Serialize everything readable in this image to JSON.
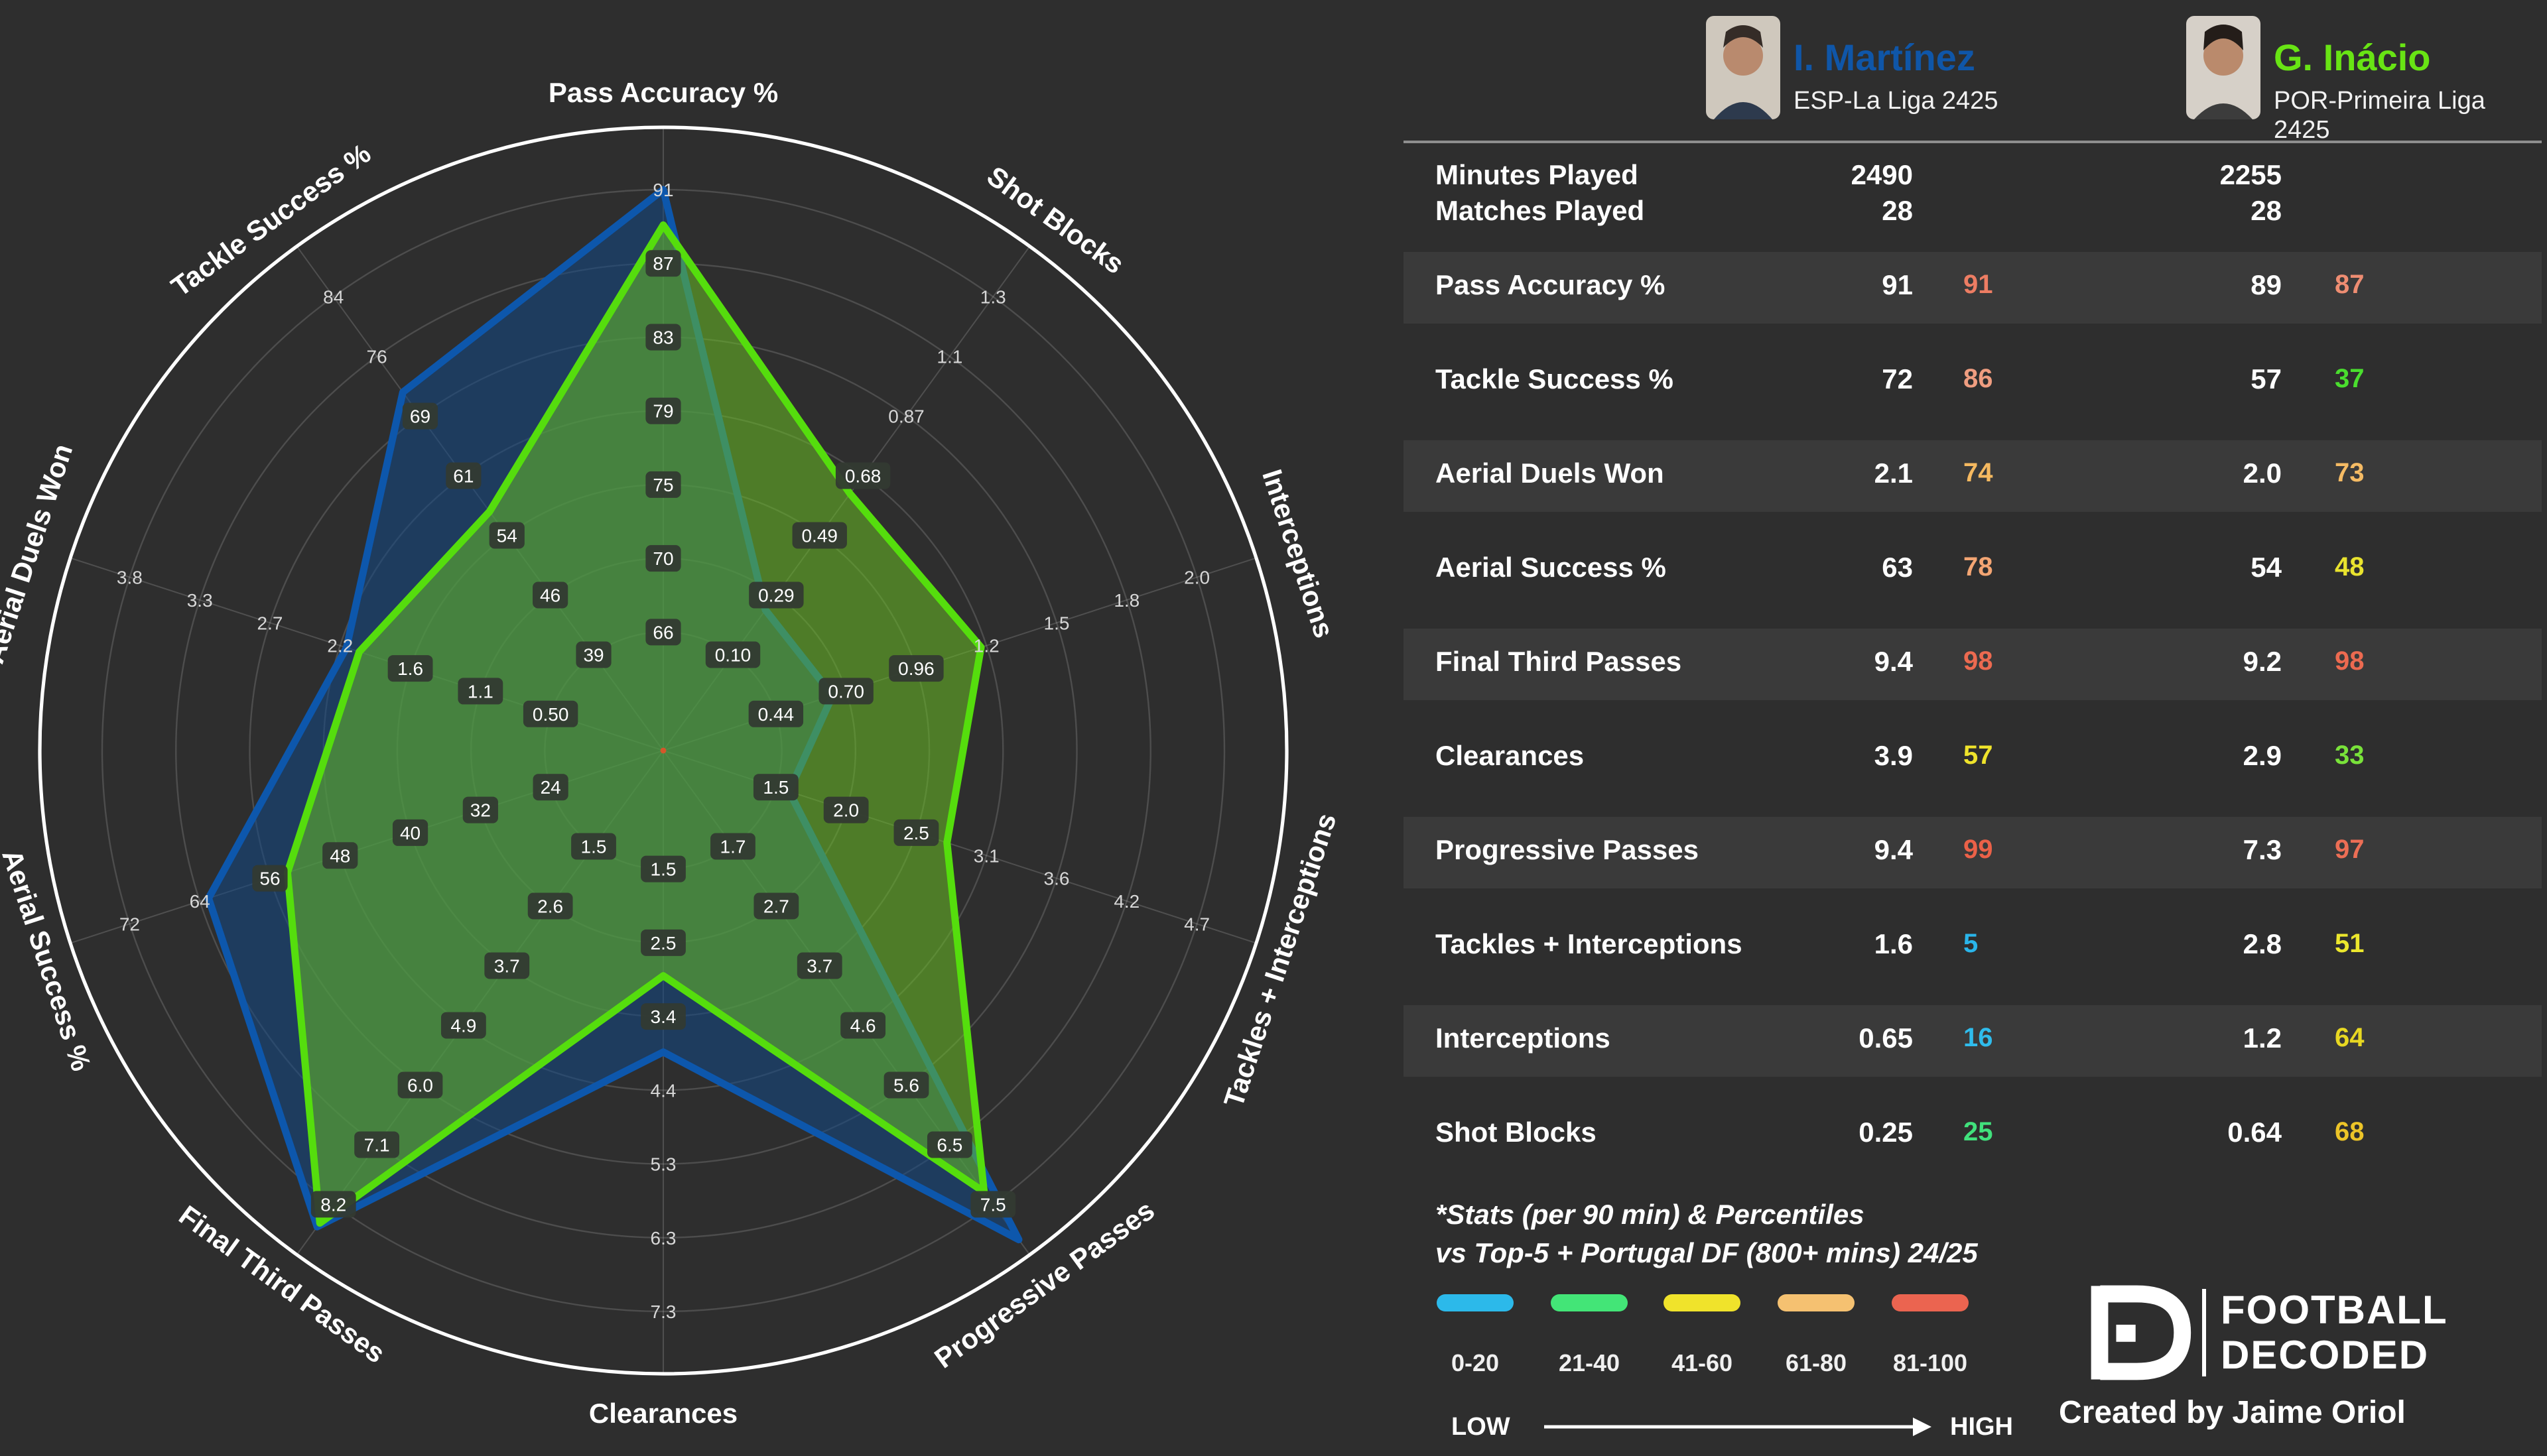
{
  "chart_data": {
    "type": "radar",
    "note": "10-axis radar; each axis has its own percentile-derived tick scale; series plotted by per-90 value",
    "axes": [
      {
        "label": "Pass Accuracy %",
        "ticks": [
          "66",
          "70",
          "75",
          "79",
          "83",
          "87",
          "91"
        ],
        "tick_values": [
          66,
          70,
          75,
          79,
          83,
          87,
          91
        ],
        "boxed": [
          1,
          1,
          1,
          1,
          1,
          1,
          0
        ]
      },
      {
        "label": "Shot Blocks",
        "ticks": [
          "0.10",
          "0.29",
          "0.49",
          "0.68",
          "0.87",
          "1.1",
          "1.3"
        ],
        "tick_values": [
          0.1,
          0.29,
          0.49,
          0.68,
          0.87,
          1.1,
          1.3
        ],
        "boxed": [
          1,
          1,
          1,
          1,
          0,
          0,
          0
        ]
      },
      {
        "label": "Interceptions",
        "ticks": [
          "0.44",
          "0.70",
          "0.96",
          "1.2",
          "1.5",
          "1.8",
          "2.0"
        ],
        "tick_values": [
          0.44,
          0.7,
          0.96,
          1.2,
          1.5,
          1.8,
          2.0
        ],
        "boxed": [
          1,
          1,
          1,
          0,
          0,
          0,
          0
        ]
      },
      {
        "label": "Tackles + Interceptions",
        "ticks": [
          "1.5",
          "2.0",
          "2.5",
          "3.1",
          "3.6",
          "4.2",
          "4.7"
        ],
        "tick_values": [
          1.5,
          2.0,
          2.5,
          3.1,
          3.6,
          4.2,
          4.7
        ],
        "boxed": [
          1,
          1,
          1,
          0,
          0,
          0,
          0
        ]
      },
      {
        "label": "Progressive Passes",
        "ticks": [
          "1.7",
          "2.7",
          "3.7",
          "4.6",
          "5.6",
          "6.5",
          "7.5"
        ],
        "tick_values": [
          1.7,
          2.7,
          3.7,
          4.6,
          5.6,
          6.5,
          7.5
        ],
        "boxed": [
          1,
          1,
          1,
          1,
          1,
          1,
          1
        ]
      },
      {
        "label": "Clearances",
        "ticks": [
          "1.5",
          "2.5",
          "3.4",
          "4.4",
          "5.3",
          "6.3",
          "7.3"
        ],
        "tick_values": [
          1.5,
          2.5,
          3.4,
          4.4,
          5.3,
          6.3,
          7.3
        ],
        "boxed": [
          1,
          1,
          1,
          0,
          0,
          0,
          0
        ]
      },
      {
        "label": "Final Third Passes",
        "ticks": [
          "1.5",
          "2.6",
          "3.7",
          "4.9",
          "6.0",
          "7.1",
          "8.2"
        ],
        "tick_values": [
          1.5,
          2.6,
          3.7,
          4.9,
          6.0,
          7.1,
          8.2
        ],
        "boxed": [
          1,
          1,
          1,
          1,
          1,
          1,
          1
        ]
      },
      {
        "label": "Aerial Success %",
        "ticks": [
          "24",
          "32",
          "40",
          "48",
          "56",
          "64",
          "72"
        ],
        "tick_values": [
          24,
          32,
          40,
          48,
          56,
          64,
          72
        ],
        "boxed": [
          1,
          1,
          1,
          1,
          1,
          0,
          0
        ]
      },
      {
        "label": "Aerial Duels Won",
        "ticks": [
          "0.50",
          "1.1",
          "1.6",
          "2.2",
          "2.7",
          "3.3",
          "3.8"
        ],
        "tick_values": [
          0.5,
          1.1,
          1.6,
          2.2,
          2.7,
          3.3,
          3.8
        ],
        "boxed": [
          1,
          1,
          1,
          0,
          0,
          0,
          0
        ]
      },
      {
        "label": "Tackle Success %",
        "ticks": [
          "39",
          "46",
          "54",
          "61",
          "69",
          "76",
          "84"
        ],
        "tick_values": [
          39,
          46,
          54,
          61,
          69,
          76,
          84
        ],
        "boxed": [
          1,
          1,
          1,
          1,
          1,
          0,
          0
        ]
      }
    ],
    "series": [
      {
        "name": "I. Martínez",
        "color": "#0d57ac",
        "fill": "rgba(19,73,134,0.55)",
        "values": [
          91,
          0.25,
          0.65,
          1.6,
          9.4,
          3.9,
          9.4,
          63,
          2.1,
          72
        ],
        "percentiles": [
          91,
          25,
          16,
          5,
          99,
          57,
          98,
          78,
          74,
          86
        ]
      },
      {
        "name": "G. Inácio",
        "color": "#55dd0d",
        "fill": "rgba(108,195,35,0.52)",
        "values": [
          89,
          0.64,
          1.2,
          2.8,
          7.3,
          2.9,
          9.2,
          54,
          2.0,
          57
        ],
        "percentiles": [
          87,
          68,
          64,
          51,
          97,
          33,
          98,
          48,
          73,
          37
        ]
      }
    ]
  },
  "header": {
    "player1": {
      "name": "I. Martínez",
      "league": "ESP-La Liga 2425",
      "color": "#0f56a8"
    },
    "player2": {
      "name": "G. Inácio",
      "league": "POR-Primeira Liga 2425",
      "color": "#68e414"
    }
  },
  "table": {
    "info_rows": [
      {
        "label": "Minutes Played",
        "v1": "2490",
        "v2": "2255"
      },
      {
        "label": "Matches Played",
        "v1": "28",
        "v2": "28"
      }
    ],
    "stat_rows": [
      {
        "label": "Pass Accuracy %",
        "v1": "91",
        "p1": "91",
        "c1": "#ed7d63",
        "v2": "89",
        "p2": "87",
        "c2": "#ee8d72",
        "striped": true
      },
      {
        "label": "Tackle Success %",
        "v1": "72",
        "p1": "86",
        "c1": "#ef9d80",
        "v2": "57",
        "p2": "37",
        "c2": "#4ade2e",
        "striped": false
      },
      {
        "label": "Aerial Duels Won",
        "v1": "2.1",
        "p1": "74",
        "c1": "#f5b960",
        "v2": "2.0",
        "p2": "73",
        "c2": "#f5bb64",
        "striped": true
      },
      {
        "label": "Aerial Success %",
        "v1": "63",
        "p1": "78",
        "c1": "#f3a573",
        "v2": "54",
        "p2": "48",
        "c2": "#e9e32e",
        "striped": false
      },
      {
        "label": "Final Third Passes",
        "v1": "9.4",
        "p1": "98",
        "c1": "#ec6a50",
        "v2": "9.2",
        "p2": "98",
        "c2": "#ec6a50",
        "striped": true
      },
      {
        "label": "Clearances",
        "v1": "3.9",
        "p1": "57",
        "c1": "#efe32b",
        "v2": "2.9",
        "p2": "33",
        "c2": "#79e23a",
        "striped": false
      },
      {
        "label": "Progressive Passes",
        "v1": "9.4",
        "p1": "99",
        "c1": "#eb6148",
        "v2": "7.3",
        "p2": "97",
        "c2": "#ec6e55",
        "striped": true
      },
      {
        "label": "Tackles + Interceptions",
        "v1": "1.6",
        "p1": "5",
        "c1": "#2ab5ea",
        "v2": "2.8",
        "p2": "51",
        "c2": "#ece72d",
        "striped": false
      },
      {
        "label": "Interceptions",
        "v1": "0.65",
        "p1": "16",
        "c1": "#2fbcec",
        "v2": "1.2",
        "p2": "64",
        "c2": "#e8d822",
        "striped": true
      },
      {
        "label": "Shot Blocks",
        "v1": "0.25",
        "p1": "25",
        "c1": "#41e17c",
        "v2": "0.64",
        "p2": "68",
        "c2": "#ecc428",
        "striped": false
      }
    ]
  },
  "footnote": {
    "line1": "*Stats (per 90 min) & Percentiles",
    "line2": "vs Top-5 + Portugal DF (800+ mins) 24/25"
  },
  "legend": {
    "buckets": [
      {
        "label": "0-20",
        "color": "#2cb9ea"
      },
      {
        "label": "21-40",
        "color": "#43e577"
      },
      {
        "label": "41-60",
        "color": "#f0e32b"
      },
      {
        "label": "61-80",
        "color": "#f5c171"
      },
      {
        "label": "81-100",
        "color": "#eb6450"
      }
    ],
    "low": "LOW",
    "high": "HIGH"
  },
  "brand": {
    "word1": "FOOTBALL",
    "word2": "DECODED",
    "credit": "Created by Jaime Oriol"
  }
}
